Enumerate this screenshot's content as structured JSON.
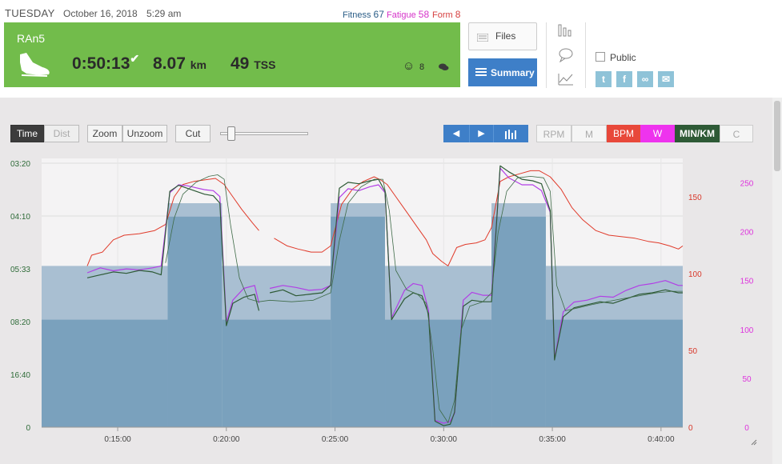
{
  "header": {
    "day": "TUESDAY",
    "date": "October 16, 2018",
    "time": "5:29 am",
    "fitness_label": "Fitness",
    "fitness_value": "67",
    "fatigue_label": "Fatigue",
    "fatigue_value": "58",
    "form_label": "Form",
    "form_value": "8"
  },
  "activity": {
    "name": "RAn5",
    "duration": "0:50:13",
    "distance": "8.07",
    "distance_unit": "km",
    "tss": "49",
    "tss_unit": "TSS",
    "feel_count": "8",
    "icon": "running-shoe-icon"
  },
  "buttons": {
    "files": "Files",
    "summary": "Summary",
    "public": "Public"
  },
  "toolbar": {
    "time": "Time",
    "dist": "Dist",
    "zoom": "Zoom",
    "unzoom": "Unzoom",
    "cut": "Cut",
    "prev": "◀",
    "next": "▶",
    "metrics": [
      "RPM",
      "M",
      "BPM",
      "W",
      "MIN/KM",
      "C"
    ]
  },
  "colors": {
    "green": "#72bc4b",
    "blue": "#3e7fc8",
    "hr": "#e03a2a",
    "power": "#cc33ee",
    "pace": "#2e5a36",
    "area_dark": "#7aa1bd",
    "area_light": "#a9bfd2"
  },
  "chart_data": {
    "type": "line",
    "x_ticks": [
      "0:15:00",
      "0:20:00",
      "0:25:00",
      "0:30:00",
      "0:35:00",
      "0:40:00"
    ],
    "x_tick_values": [
      15,
      20,
      25,
      30,
      35,
      40
    ],
    "xlim": [
      11.5,
      41
    ],
    "pace_ticks": [
      "03:20",
      "04:10",
      "05:33",
      "08:20",
      "16:40",
      "0"
    ],
    "hr_ticks": [
      "150",
      "100",
      "50",
      "0"
    ],
    "hr_tick_values": [
      150,
      100,
      50,
      0
    ],
    "hr_lim": [
      0,
      175
    ],
    "power_ticks": [
      "250",
      "200",
      "150",
      "100",
      "50",
      "0"
    ],
    "power_tick_values": [
      250,
      200,
      150,
      100,
      50,
      0
    ],
    "power_lim": [
      0,
      275
    ],
    "speed_lim": [
      0,
      18
    ],
    "intervals": [
      {
        "start": 11.5,
        "end": 17.3,
        "speed_high": 10.8,
        "speed_low": 7.2
      },
      {
        "start": 17.3,
        "end": 19.8,
        "speed_high": 15.0,
        "speed_low": 14.1
      },
      {
        "start": 19.8,
        "end": 24.8,
        "speed_high": 10.8,
        "speed_low": 7.2
      },
      {
        "start": 24.8,
        "end": 27.3,
        "speed_high": 15.0,
        "speed_low": 14.1
      },
      {
        "start": 27.3,
        "end": 32.2,
        "speed_high": 10.8,
        "speed_low": 7.2
      },
      {
        "start": 32.2,
        "end": 34.7,
        "speed_high": 15.0,
        "speed_low": 14.1
      },
      {
        "start": 34.7,
        "end": 41.0,
        "speed_high": 10.8,
        "speed_low": 7.2
      }
    ],
    "series": [
      {
        "kind": "hr",
        "points": [
          [
            13.6,
            105
          ],
          [
            13.8,
            112
          ],
          [
            14.3,
            114
          ],
          [
            14.8,
            122
          ],
          [
            15.3,
            125
          ],
          [
            16.0,
            126
          ],
          [
            16.7,
            128
          ],
          [
            17.2,
            132
          ],
          [
            17.6,
            150
          ],
          [
            18.0,
            158
          ],
          [
            18.5,
            160
          ],
          [
            19.0,
            161
          ],
          [
            19.5,
            162
          ],
          [
            19.9,
            158
          ],
          [
            20.3,
            150
          ],
          [
            20.7,
            142
          ],
          [
            21.2,
            133
          ],
          [
            21.5,
            128
          ]
        ]
      },
      {
        "kind": "hr",
        "points": [
          [
            22.2,
            123
          ],
          [
            22.8,
            118
          ],
          [
            23.3,
            116
          ],
          [
            23.9,
            114
          ],
          [
            24.4,
            114
          ],
          [
            24.8,
            118
          ],
          [
            25.3,
            145
          ],
          [
            25.8,
            155
          ],
          [
            26.3,
            160
          ],
          [
            26.8,
            163
          ],
          [
            27.1,
            161
          ],
          [
            27.4,
            158
          ],
          [
            27.8,
            150
          ],
          [
            28.3,
            140
          ],
          [
            28.8,
            130
          ],
          [
            29.2,
            122
          ],
          [
            29.5,
            113
          ],
          [
            29.9,
            108
          ],
          [
            30.2,
            105
          ],
          [
            30.6,
            117
          ],
          [
            31.0,
            119
          ],
          [
            31.5,
            120
          ],
          [
            31.9,
            122
          ],
          [
            32.2,
            130
          ],
          [
            32.6,
            160
          ],
          [
            33.0,
            163
          ],
          [
            33.5,
            165
          ],
          [
            34.0,
            167
          ],
          [
            34.4,
            167
          ],
          [
            34.9,
            163
          ],
          [
            35.4,
            155
          ],
          [
            35.9,
            143
          ],
          [
            36.4,
            135
          ],
          [
            37.0,
            128
          ],
          [
            37.6,
            125
          ],
          [
            38.2,
            124
          ],
          [
            38.8,
            123
          ],
          [
            39.4,
            121
          ],
          [
            39.9,
            120
          ],
          [
            40.4,
            118
          ],
          [
            40.8,
            116
          ],
          [
            41.0,
            118
          ]
        ]
      },
      {
        "kind": "power",
        "points": [
          [
            13.6,
            158
          ],
          [
            14.2,
            163
          ],
          [
            14.8,
            160
          ],
          [
            15.4,
            162
          ],
          [
            16.0,
            161
          ],
          [
            16.6,
            163
          ],
          [
            17.0,
            165
          ],
          [
            17.4,
            240
          ],
          [
            17.8,
            248
          ],
          [
            18.2,
            247
          ],
          [
            18.6,
            245
          ],
          [
            19.0,
            243
          ],
          [
            19.4,
            242
          ],
          [
            19.7,
            236
          ],
          [
            20.0,
            108
          ],
          [
            20.3,
            130
          ],
          [
            20.8,
            142
          ],
          [
            21.3,
            145
          ],
          [
            21.5,
            127
          ]
        ]
      },
      {
        "kind": "power",
        "points": [
          [
            22.0,
            142
          ],
          [
            22.6,
            145
          ],
          [
            23.2,
            143
          ],
          [
            23.8,
            140
          ],
          [
            24.4,
            141
          ],
          [
            24.8,
            145
          ],
          [
            25.2,
            235
          ],
          [
            25.6,
            244
          ],
          [
            26.1,
            242
          ],
          [
            26.6,
            246
          ],
          [
            27.0,
            248
          ],
          [
            27.3,
            240
          ],
          [
            27.6,
            112
          ],
          [
            28.2,
            140
          ],
          [
            28.6,
            147
          ],
          [
            29.0,
            145
          ],
          [
            29.3,
            120
          ],
          [
            29.6,
            7
          ],
          [
            30.0,
            4
          ],
          [
            30.3,
            6
          ],
          [
            30.5,
            14
          ],
          [
            30.9,
            130
          ],
          [
            31.3,
            138
          ],
          [
            31.8,
            135
          ],
          [
            32.2,
            135
          ],
          [
            32.6,
            265
          ],
          [
            33.0,
            255
          ],
          [
            33.6,
            248
          ],
          [
            34.1,
            248
          ],
          [
            34.5,
            242
          ],
          [
            34.9,
            220
          ],
          [
            35.1,
            70
          ],
          [
            35.5,
            118
          ],
          [
            36.0,
            128
          ],
          [
            36.6,
            130
          ],
          [
            37.2,
            134
          ],
          [
            37.8,
            133
          ],
          [
            38.4,
            140
          ],
          [
            39.0,
            145
          ],
          [
            39.6,
            147
          ],
          [
            40.2,
            150
          ],
          [
            40.8,
            145
          ],
          [
            41.0,
            145
          ]
        ]
      },
      {
        "kind": "pace",
        "points": [
          [
            13.6,
            10.0
          ],
          [
            14.2,
            10.2
          ],
          [
            14.8,
            10.4
          ],
          [
            15.4,
            10.3
          ],
          [
            16.0,
            10.5
          ],
          [
            16.6,
            10.4
          ],
          [
            17.0,
            10.2
          ],
          [
            17.4,
            15.8
          ],
          [
            17.8,
            16.2
          ],
          [
            18.2,
            16.0
          ],
          [
            18.6,
            15.8
          ],
          [
            19.0,
            15.6
          ],
          [
            19.4,
            15.5
          ],
          [
            19.7,
            15.0
          ],
          [
            20.0,
            6.8
          ],
          [
            20.3,
            8.3
          ],
          [
            20.8,
            8.7
          ],
          [
            21.3,
            8.9
          ],
          [
            21.5,
            7.8
          ]
        ]
      },
      {
        "kind": "pace",
        "points": [
          [
            22.0,
            9.0
          ],
          [
            22.6,
            9.2
          ],
          [
            23.2,
            8.8
          ],
          [
            23.8,
            8.9
          ],
          [
            24.4,
            9.0
          ],
          [
            24.8,
            9.5
          ],
          [
            25.2,
            16.0
          ],
          [
            25.6,
            16.4
          ],
          [
            26.1,
            16.3
          ],
          [
            26.6,
            16.5
          ],
          [
            27.0,
            16.6
          ],
          [
            27.3,
            15.8
          ],
          [
            27.6,
            7.2
          ],
          [
            28.2,
            8.6
          ],
          [
            28.6,
            9.0
          ],
          [
            29.0,
            8.8
          ],
          [
            29.3,
            7.6
          ],
          [
            29.6,
            0.4
          ],
          [
            30.0,
            0.1
          ],
          [
            30.3,
            0.2
          ],
          [
            30.5,
            1.0
          ],
          [
            30.9,
            8.1
          ],
          [
            31.3,
            8.5
          ],
          [
            31.8,
            8.4
          ],
          [
            32.2,
            8.4
          ],
          [
            32.6,
            17.5
          ],
          [
            33.0,
            17.1
          ],
          [
            33.6,
            16.6
          ],
          [
            34.1,
            16.5
          ],
          [
            34.5,
            16.3
          ],
          [
            34.9,
            14.5
          ],
          [
            35.1,
            4.5
          ],
          [
            35.5,
            7.4
          ],
          [
            36.0,
            8.0
          ],
          [
            36.6,
            8.2
          ],
          [
            37.2,
            8.4
          ],
          [
            37.8,
            8.3
          ],
          [
            38.4,
            8.6
          ],
          [
            39.0,
            8.9
          ],
          [
            39.6,
            9.0
          ],
          [
            40.2,
            9.2
          ],
          [
            40.8,
            9.0
          ],
          [
            41.0,
            9.0
          ]
        ]
      },
      {
        "kind": "trend",
        "points": [
          [
            17.2,
            11.0
          ],
          [
            17.6,
            14.0
          ],
          [
            18.0,
            15.6
          ],
          [
            18.6,
            16.4
          ],
          [
            19.2,
            16.8
          ],
          [
            19.6,
            16.9
          ],
          [
            19.9,
            16.6
          ],
          [
            20.2,
            13.5
          ],
          [
            20.6,
            10.0
          ],
          [
            21.0,
            8.6
          ],
          [
            21.5,
            8.4
          ],
          [
            22.0,
            8.5
          ],
          [
            23.0,
            8.4
          ],
          [
            24.0,
            8.5
          ],
          [
            24.8,
            9.0
          ],
          [
            25.2,
            12.5
          ],
          [
            25.6,
            15.0
          ],
          [
            26.2,
            16.1
          ],
          [
            26.8,
            16.6
          ],
          [
            27.2,
            16.6
          ],
          [
            27.5,
            14.5
          ],
          [
            27.8,
            10.5
          ],
          [
            28.3,
            9.2
          ],
          [
            28.8,
            8.9
          ],
          [
            29.2,
            8.3
          ],
          [
            29.5,
            5.2
          ],
          [
            29.8,
            1.2
          ],
          [
            30.2,
            0.3
          ],
          [
            30.5,
            1.8
          ],
          [
            30.8,
            6.5
          ],
          [
            31.2,
            8.1
          ],
          [
            31.8,
            8.4
          ],
          [
            32.2,
            9.0
          ],
          [
            32.5,
            13.0
          ],
          [
            32.9,
            15.8
          ],
          [
            33.4,
            16.7
          ],
          [
            34.0,
            16.8
          ],
          [
            34.6,
            16.7
          ],
          [
            34.9,
            15.8
          ],
          [
            35.2,
            9.5
          ],
          [
            35.6,
            7.8
          ],
          [
            36.2,
            8.0
          ],
          [
            36.8,
            8.2
          ],
          [
            37.5,
            8.4
          ],
          [
            38.2,
            8.6
          ],
          [
            39.0,
            8.8
          ],
          [
            39.8,
            9.0
          ],
          [
            40.5,
            9.1
          ],
          [
            41.0,
            9.1
          ]
        ]
      }
    ]
  }
}
